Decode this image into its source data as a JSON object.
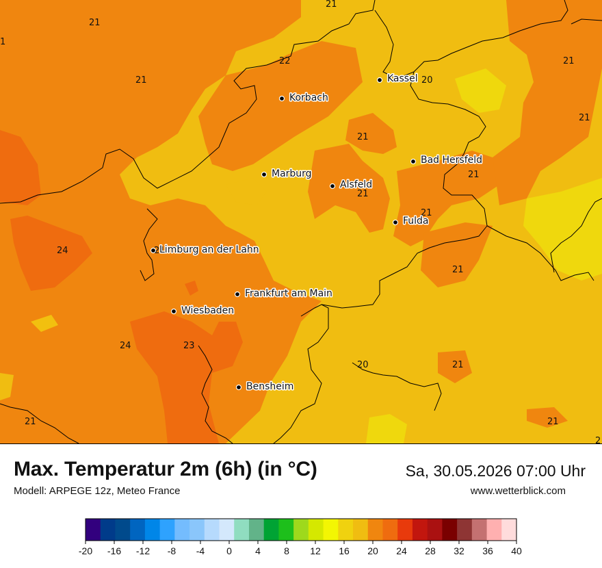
{
  "title": "Max. Temperatur 2m (6h) (in °C)",
  "model": "Modell: ARPEGE 12z, Meteo France",
  "datetime": "Sa, 30.05.2026 07:00 Uhr",
  "website": "www.wetterblick.com",
  "colors": {
    "t18_20": "#f2c00f",
    "t20_22": "#f0bd11",
    "t22_24": "#f0860f",
    "t24_26": "#ef6c0f",
    "t16_18": "#efd80d",
    "border": "#000000"
  },
  "cities": [
    {
      "name": "Kassel"
    },
    {
      "name": "Korbach"
    },
    {
      "name": "Bad Hersfeld"
    },
    {
      "name": "Marburg"
    },
    {
      "name": "Alsfeld"
    },
    {
      "name": "Fulda"
    },
    {
      "name": "Limburg an der Lahn"
    },
    {
      "name": "Frankfurt am Main"
    },
    {
      "name": "Wiesbaden"
    },
    {
      "name": "Bensheim"
    }
  ],
  "value_labels": [
    "21",
    "21",
    "22",
    "21",
    "20",
    "21",
    "21",
    "21",
    "21",
    "21",
    "21",
    "24",
    "21",
    "21",
    "24",
    "23",
    "20",
    "21",
    "21",
    "21",
    "1",
    "2"
  ],
  "legend": {
    "ticks": [
      "-20",
      "-16",
      "-12",
      "-8",
      "-4",
      "0",
      "4",
      "8",
      "12",
      "16",
      "20",
      "24",
      "28",
      "32",
      "36",
      "40"
    ],
    "colors": [
      "#32007e",
      "#003b8a",
      "#004a8c",
      "#0065c0",
      "#0086e8",
      "#2ea2fe",
      "#74bcfe",
      "#8ac6fb",
      "#b6dafd",
      "#d4e8fc",
      "#90ddc0",
      "#62b389",
      "#00a334",
      "#1dbf1b",
      "#9ed91c",
      "#d5e800",
      "#f3f603",
      "#f0d20f",
      "#f0bd11",
      "#f0860f",
      "#ef6c0f",
      "#e83a0c",
      "#c2160e",
      "#aa1111",
      "#7a0000",
      "#8e3534",
      "#c47171",
      "#ffb0b0",
      "#ffdcdc"
    ]
  }
}
